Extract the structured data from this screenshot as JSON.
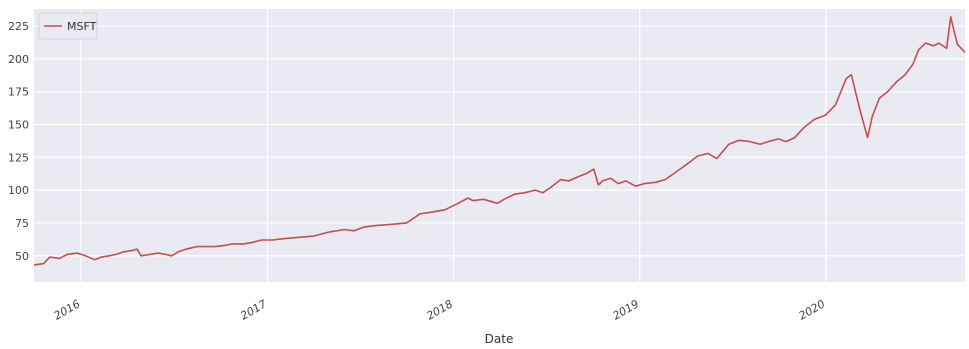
{
  "chart_data": {
    "type": "line",
    "title": "",
    "xlabel": "Date",
    "ylabel": "",
    "x_tick_labels": [
      "2016",
      "2017",
      "2018",
      "2019",
      "2020"
    ],
    "y_ticks": [
      50,
      75,
      100,
      125,
      150,
      175,
      200,
      225
    ],
    "ylim": [
      30,
      238
    ],
    "xlim": [
      "2015-10-01",
      "2020-09-30"
    ],
    "grid": true,
    "legend_position": "top-left",
    "series": [
      {
        "name": "MSFT",
        "color": "#c44e52",
        "x": [
          "2015-10-01",
          "2015-10-20",
          "2015-11-01",
          "2015-11-20",
          "2015-12-05",
          "2015-12-25",
          "2016-01-10",
          "2016-01-28",
          "2016-02-10",
          "2016-02-25",
          "2016-03-10",
          "2016-03-25",
          "2016-04-10",
          "2016-04-20",
          "2016-04-28",
          "2016-05-15",
          "2016-06-01",
          "2016-06-15",
          "2016-06-27",
          "2016-07-10",
          "2016-07-25",
          "2016-08-15",
          "2016-09-01",
          "2016-09-20",
          "2016-10-10",
          "2016-10-25",
          "2016-11-15",
          "2016-12-01",
          "2016-12-20",
          "2017-01-10",
          "2017-02-01",
          "2017-03-01",
          "2017-04-01",
          "2017-05-01",
          "2017-06-01",
          "2017-06-20",
          "2017-07-10",
          "2017-08-01",
          "2017-09-01",
          "2017-10-01",
          "2017-10-27",
          "2017-11-15",
          "2017-12-15",
          "2018-01-10",
          "2018-01-29",
          "2018-02-08",
          "2018-03-01",
          "2018-03-28",
          "2018-04-10",
          "2018-05-01",
          "2018-05-20",
          "2018-06-10",
          "2018-06-25",
          "2018-07-10",
          "2018-07-30",
          "2018-08-15",
          "2018-09-01",
          "2018-09-20",
          "2018-10-03",
          "2018-10-12",
          "2018-10-20",
          "2018-11-05",
          "2018-11-20",
          "2018-12-05",
          "2018-12-24",
          "2019-01-10",
          "2019-02-01",
          "2019-02-20",
          "2019-03-10",
          "2019-04-01",
          "2019-04-25",
          "2019-05-15",
          "2019-06-01",
          "2019-06-25",
          "2019-07-15",
          "2019-08-05",
          "2019-08-25",
          "2019-09-10",
          "2019-09-30",
          "2019-10-15",
          "2019-11-01",
          "2019-11-20",
          "2019-12-10",
          "2019-12-31",
          "2020-01-20",
          "2020-02-10",
          "2020-02-20",
          "2020-03-01",
          "2020-03-10",
          "2020-03-23",
          "2020-04-01",
          "2020-04-15",
          "2020-05-01",
          "2020-05-20",
          "2020-06-05",
          "2020-06-20",
          "2020-07-01",
          "2020-07-15",
          "2020-07-30",
          "2020-08-10",
          "2020-08-25",
          "2020-09-02",
          "2020-09-15",
          "2020-09-30"
        ],
        "y": [
          43,
          44,
          49,
          48,
          51,
          52,
          50,
          47,
          49,
          50,
          51,
          53,
          54,
          55,
          50,
          51,
          52,
          51,
          50,
          53,
          55,
          57,
          57,
          57,
          58,
          59,
          59,
          60,
          62,
          62,
          63,
          64,
          65,
          68,
          70,
          69,
          72,
          73,
          74,
          75,
          82,
          83,
          85,
          90,
          94,
          92,
          93,
          90,
          93,
          97,
          98,
          100,
          98,
          102,
          108,
          107,
          110,
          113,
          116,
          104,
          107,
          109,
          105,
          107,
          103,
          105,
          106,
          108,
          113,
          119,
          126,
          128,
          124,
          135,
          138,
          137,
          135,
          137,
          139,
          137,
          140,
          148,
          154,
          157,
          165,
          185,
          188,
          172,
          158,
          140,
          156,
          170,
          175,
          183,
          188,
          196,
          207,
          212,
          210,
          212,
          208,
          232,
          211,
          205
        ]
      }
    ]
  }
}
